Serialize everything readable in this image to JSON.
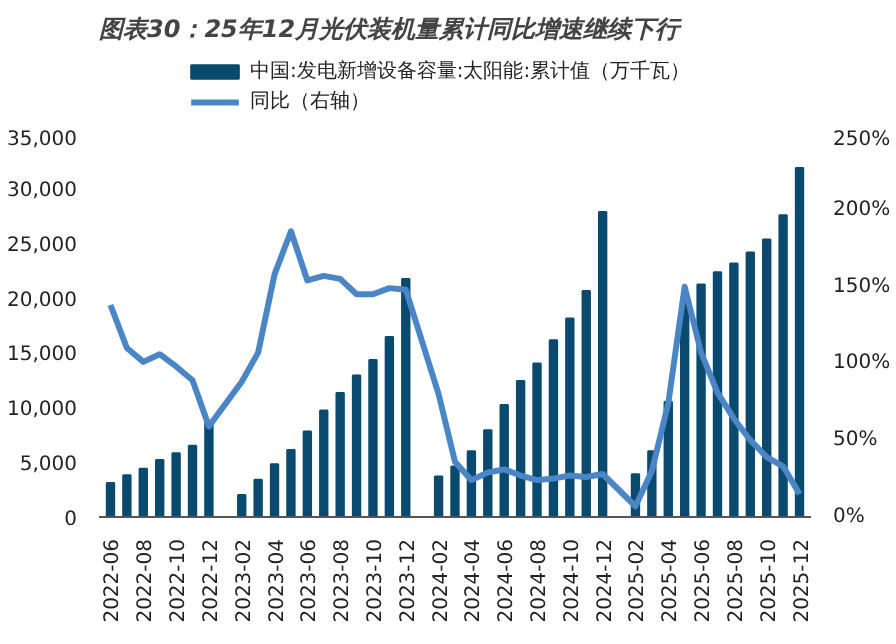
{
  "chart_data": {
    "type": "bar",
    "title": "图表30：25年12月光伏装机量累计同比增速继续下行",
    "categories": [
      "2022-06",
      null,
      "2022-08",
      null,
      "2022-10",
      null,
      "2022-12",
      null,
      "2023-02",
      null,
      "2023-04",
      null,
      "2023-06",
      null,
      "2023-08",
      null,
      "2023-10",
      null,
      "2023-12",
      null,
      "2024-02",
      null,
      "2024-04",
      null,
      "2024-06",
      null,
      "2024-08",
      null,
      "2024-10",
      null,
      "2024-12",
      null,
      "2025-02",
      null,
      "2025-04",
      null,
      "2025-06",
      null,
      "2025-08",
      null,
      "2025-10",
      null,
      "2025-12"
    ],
    "series": [
      {
        "name": "中国:发电新增设备容量:太阳能:累计值（万千瓦）",
        "color": "#0b4a6f",
        "values": [
          3100,
          3800,
          4400,
          5200,
          5800,
          6500,
          8700,
          null,
          2000,
          3400,
          4800,
          6100,
          7800,
          9700,
          11300,
          12900,
          14300,
          16400,
          21700,
          null,
          3700,
          4600,
          6000,
          7900,
          10200,
          12400,
          14000,
          16100,
          18100,
          20600,
          27800,
          null,
          3900,
          6000,
          10500,
          19800,
          21200,
          22300,
          23100,
          24100,
          25300,
          27500,
          31800
        ]
      },
      {
        "name": "同比（右轴）",
        "type": "line",
        "axis": "y2",
        "color": "#4a86c5",
        "values": [
          138,
          110,
          101,
          106,
          98,
          89,
          59,
          null,
          88,
          107,
          158,
          186,
          154,
          157,
          155,
          145,
          145,
          149,
          148,
          null,
          80,
          36,
          24,
          29,
          31,
          27,
          24,
          25,
          27,
          26,
          28,
          null,
          7,
          30,
          74,
          150,
          107,
          81,
          64,
          50,
          39,
          33,
          15
        ]
      }
    ],
    "ylim": [
      0,
      35000
    ],
    "yticks": [
      0,
      {
        "value": 5000,
        "label": "5,000"
      },
      {
        "value": 10000,
        "label": "10,000"
      },
      {
        "value": 15000,
        "label": "15,000"
      },
      {
        "value": 20000,
        "label": "20,000"
      },
      {
        "value": 25000,
        "label": "25,000"
      },
      {
        "value": 30000,
        "label": "30,000"
      },
      {
        "value": 35000,
        "label": "35,000"
      }
    ],
    "y2lim": [
      0,
      250
    ],
    "y2ticks": [
      {
        "value": 0,
        "label": "0%"
      },
      {
        "value": 50,
        "label": "50%"
      },
      {
        "value": 100,
        "label": "100%"
      },
      {
        "value": 150,
        "label": "150%"
      },
      {
        "value": 200,
        "label": "200%"
      },
      {
        "value": 250,
        "label": "250%"
      }
    ],
    "legend": "top",
    "grid": false
  }
}
